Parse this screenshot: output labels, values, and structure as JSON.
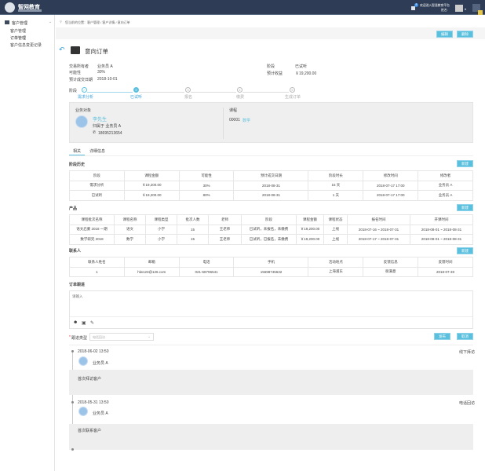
{
  "header": {
    "logo_text": "智网教育",
    "badge_count": "8",
    "welcome": "欢迎进入智慧教育平台",
    "user_label": "姓名:",
    "colors": {
      "bg": "#2e3d55",
      "accent": "#5bc0de"
    }
  },
  "sidebar": {
    "group": "客户管理",
    "items": [
      {
        "label": "客户管理"
      },
      {
        "label": "订单管理"
      },
      {
        "label": "客户信息变更记录"
      }
    ]
  },
  "breadcrumb": "您当前的位置：客户管理 / 客户详情 / 意向订单",
  "toolbar": {
    "edit": "编辑",
    "delete": "删除"
  },
  "page": {
    "title": "意向订单"
  },
  "info": {
    "owner_label": "交易所有者",
    "owner": "业务员 A",
    "prob_label": "可能性",
    "prob": "30%",
    "date_label": "预计成交日期",
    "date": "2018-10-01",
    "stage_label": "阶段",
    "stage": "已试听",
    "revenue_label": "预计收益",
    "revenue": "￥19,200.00"
  },
  "steps": {
    "label": "阶段",
    "items": [
      {
        "num": "✓",
        "label": "需求分析"
      },
      {
        "num": "2",
        "label": "已试听"
      },
      {
        "num": "3",
        "label": "报名"
      },
      {
        "num": "4",
        "label": "缴费"
      },
      {
        "num": "5",
        "label": "生成订单"
      }
    ],
    "current": 2
  },
  "card": {
    "target_label": "业务对象",
    "name": "李先生",
    "belongs": "归属于 业务员 A",
    "phone": "18695213654",
    "course_label": "课程",
    "course_code": "00001",
    "course_name": "数学"
  },
  "tabs": [
    {
      "label": "相关",
      "active": true
    },
    {
      "label": "详细信息"
    }
  ],
  "new_label": "新建",
  "history": {
    "title": "阶段历史",
    "headers": [
      "阶段",
      "课程金额",
      "可能性",
      "预计成交日期",
      "阶段时长",
      "修改时间",
      "修改者"
    ],
    "rows": [
      [
        "需求分析",
        "￥19,200.00",
        "30%",
        "2018-08-31",
        "15 天",
        "2018-07-17  17:00",
        "业务员 A"
      ],
      [
        "已试听",
        "￥19,200.00",
        "80%",
        "2018-08-31",
        "1 天",
        "2018-07-17  17:00",
        "业务员 A"
      ]
    ]
  },
  "products": {
    "title": "产品",
    "headers": [
      "课程批次名称",
      "课程名称",
      "课程类型",
      "批次人数",
      "老师",
      "阶段",
      "课程金额",
      "课程状态",
      "报名时间",
      "开课时间"
    ],
    "rows": [
      [
        "语文启蒙 2018 一期",
        "语文",
        "小学",
        "15",
        "王老师",
        "已试听，未报名，未缴费",
        "￥19,200.00",
        "上线",
        "2018-07-16 ~ 2018-07-31",
        "2018-08-01 ~ 2018-08-31"
      ],
      [
        "数学研究 2018",
        "数学",
        "小学",
        "15",
        "王老师",
        "已试听，已报名，未缴费",
        "￥19,200.00",
        "上线",
        "2018-07-17 ~ 2018-07-31",
        "2018-08-01 ~ 2018-08-31"
      ]
    ]
  },
  "contacts": {
    "title": "联系人",
    "headers": [
      "联系人姓名",
      "邮箱",
      "电话",
      "手机",
      "活动地点",
      "反馈信息",
      "反馈时间"
    ],
    "rows": [
      [
        "1",
        "hlw123@126.com",
        "021-58796541",
        "15698745632",
        "上海浦东",
        "很满意",
        "2018-07-30"
      ]
    ]
  },
  "followup": {
    "title": "订单跟进",
    "placeholder": "请输入",
    "type_label": "跟进类型",
    "type_placeholder": "电话回访",
    "publish": "发布",
    "cancel": "取消"
  },
  "timeline": [
    {
      "time": "2018-06-02 13:50",
      "user": "业务员 A",
      "type": "线下拜访",
      "content": "首次拜访客户"
    },
    {
      "time": "2018-05-31 13:50",
      "user": "业务员 A",
      "type": "电话回访",
      "content": "首次联系客户"
    }
  ]
}
